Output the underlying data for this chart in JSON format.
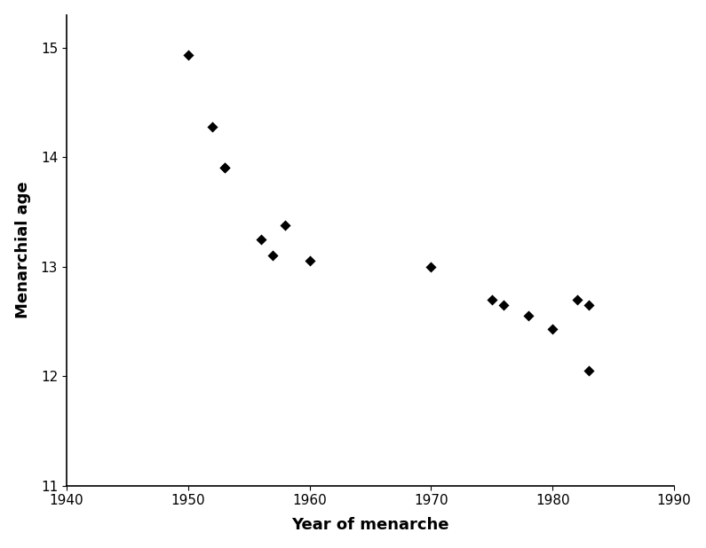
{
  "scatter_x": [
    1950,
    1952,
    1953,
    1953,
    1956,
    1957,
    1958,
    1960,
    1970,
    1975,
    1976,
    1978,
    1980,
    1982,
    1983,
    1983
  ],
  "scatter_y": [
    14.93,
    14.28,
    13.9,
    13.9,
    13.25,
    13.1,
    13.38,
    13.05,
    13.0,
    12.7,
    12.65,
    12.55,
    12.43,
    12.7,
    12.65,
    12.05
  ],
  "xlabel": "Year of menarche",
  "ylabel": "Menarchial age",
  "xlim": [
    1940,
    1990
  ],
  "ylim": [
    11.0,
    15.3
  ],
  "xticks": [
    1940,
    1950,
    1960,
    1970,
    1980,
    1990
  ],
  "yticks": [
    11,
    12,
    13,
    14,
    15
  ],
  "marker_color": "#000000",
  "line_color": "#000000",
  "background_color": "#ffffff",
  "label_fontsize": 13,
  "tick_fontsize": 11,
  "curve_x_start": 1944,
  "curve_x_end": 1990
}
